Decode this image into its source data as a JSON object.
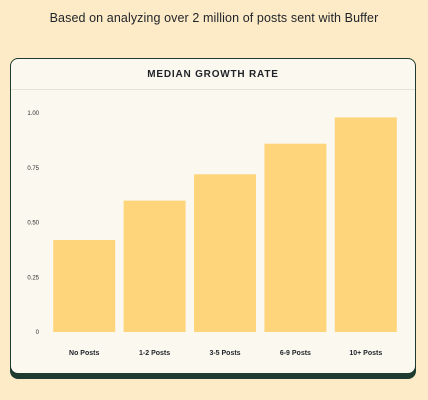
{
  "header": {
    "subtitle": "Based on analyzing over 2 million of posts sent with Buffer"
  },
  "colors": {
    "page_background": "#fdebc8",
    "card_background": "#fbf8ef",
    "card_border": "#1e3b2f",
    "bar_fill": "#fed57b"
  },
  "chart_data": {
    "type": "bar",
    "title": "MEDIAN GROWTH RATE",
    "xlabel": "",
    "ylabel": "",
    "categories": [
      "No Posts",
      "1-2 Posts",
      "3-5 Posts",
      "6-9 Posts",
      "10+ Posts"
    ],
    "values": [
      0.42,
      0.6,
      0.72,
      0.86,
      0.98
    ],
    "ylim": [
      0,
      1.0
    ],
    "y_ticks": [
      {
        "value": 0,
        "label": "0"
      },
      {
        "value": 0.25,
        "label": "0.25"
      },
      {
        "value": 0.5,
        "label": "0.50"
      },
      {
        "value": 0.75,
        "label": "0.75"
      },
      {
        "value": 1.0,
        "label": "1.00"
      }
    ],
    "grid": false,
    "legend": "none"
  }
}
